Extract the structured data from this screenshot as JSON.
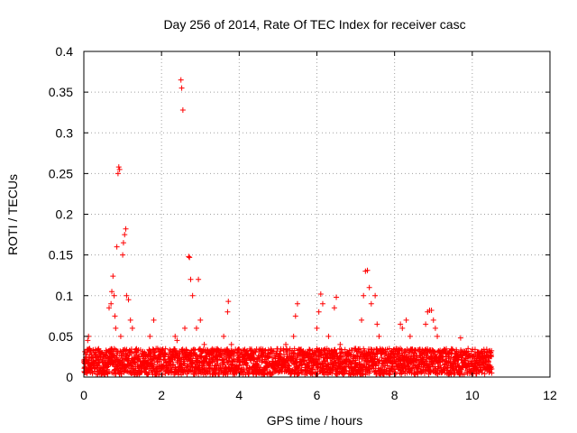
{
  "chart_data": {
    "type": "scatter",
    "title": "Day 256 of 2014, Rate Of TEC Index for receiver casc",
    "xlabel": "GPS time / hours",
    "ylabel": "ROTI / TECUs",
    "xlim": [
      0,
      12
    ],
    "ylim": [
      0,
      0.4
    ],
    "x_ticks": [
      {
        "value": 0,
        "label": "0"
      },
      {
        "value": 2,
        "label": "2"
      },
      {
        "value": 4,
        "label": "4"
      },
      {
        "value": 6,
        "label": "6"
      },
      {
        "value": 8,
        "label": "8"
      },
      {
        "value": 10,
        "label": "10"
      },
      {
        "value": 12,
        "label": "12"
      }
    ],
    "y_ticks": [
      {
        "value": 0,
        "label": "0"
      },
      {
        "value": 0.05,
        "label": "0.05"
      },
      {
        "value": 0.1,
        "label": "0.1"
      },
      {
        "value": 0.15,
        "label": "0.15"
      },
      {
        "value": 0.2,
        "label": "0.2"
      },
      {
        "value": 0.25,
        "label": "0.25"
      },
      {
        "value": 0.3,
        "label": "0.3"
      },
      {
        "value": 0.35,
        "label": "0.35"
      },
      {
        "value": 0.4,
        "label": "0.4"
      }
    ],
    "grid": true,
    "marker": "+",
    "color": "#ff0000",
    "series": [
      {
        "name": "ROTI",
        "points": [
          [
            0.02,
            0.012
          ],
          [
            0.05,
            0.02
          ],
          [
            0.08,
            0.03
          ],
          [
            0.1,
            0.045
          ],
          [
            0.12,
            0.05
          ],
          [
            0.15,
            0.035
          ],
          [
            0.2,
            0.015
          ],
          [
            0.3,
            0.02
          ],
          [
            0.4,
            0.018
          ],
          [
            0.5,
            0.025
          ],
          [
            0.6,
            0.03
          ],
          [
            0.65,
            0.085
          ],
          [
            0.7,
            0.09
          ],
          [
            0.72,
            0.105
          ],
          [
            0.75,
            0.124
          ],
          [
            0.78,
            0.1
          ],
          [
            0.8,
            0.075
          ],
          [
            0.82,
            0.06
          ],
          [
            0.85,
            0.16
          ],
          [
            0.88,
            0.25
          ],
          [
            0.9,
            0.258
          ],
          [
            0.92,
            0.255
          ],
          [
            0.95,
            0.05
          ],
          [
            1.0,
            0.15
          ],
          [
            1.02,
            0.165
          ],
          [
            1.05,
            0.175
          ],
          [
            1.08,
            0.182
          ],
          [
            1.1,
            0.1
          ],
          [
            1.15,
            0.095
          ],
          [
            1.2,
            0.07
          ],
          [
            1.25,
            0.06
          ],
          [
            1.3,
            0.03
          ],
          [
            1.4,
            0.025
          ],
          [
            1.5,
            0.028
          ],
          [
            1.6,
            0.02
          ],
          [
            1.7,
            0.05
          ],
          [
            1.8,
            0.07
          ],
          [
            1.9,
            0.035
          ],
          [
            2.0,
            0.03
          ],
          [
            2.2,
            0.028
          ],
          [
            2.35,
            0.05
          ],
          [
            2.4,
            0.045
          ],
          [
            2.5,
            0.365
          ],
          [
            2.52,
            0.355
          ],
          [
            2.55,
            0.328
          ],
          [
            2.6,
            0.06
          ],
          [
            2.7,
            0.148
          ],
          [
            2.72,
            0.147
          ],
          [
            2.75,
            0.12
          ],
          [
            2.8,
            0.1
          ],
          [
            2.9,
            0.06
          ],
          [
            2.95,
            0.12
          ],
          [
            3.0,
            0.07
          ],
          [
            3.1,
            0.04
          ],
          [
            3.2,
            0.03
          ],
          [
            3.4,
            0.025
          ],
          [
            3.6,
            0.05
          ],
          [
            3.7,
            0.08
          ],
          [
            3.72,
            0.093
          ],
          [
            3.8,
            0.04
          ],
          [
            3.9,
            0.02
          ],
          [
            4.0,
            0.015
          ],
          [
            4.3,
            0.025
          ],
          [
            4.6,
            0.02
          ],
          [
            5.0,
            0.025
          ],
          [
            5.2,
            0.04
          ],
          [
            5.4,
            0.05
          ],
          [
            5.45,
            0.075
          ],
          [
            5.5,
            0.09
          ],
          [
            5.6,
            0.03
          ],
          [
            5.8,
            0.025
          ],
          [
            6.0,
            0.06
          ],
          [
            6.05,
            0.08
          ],
          [
            6.1,
            0.102
          ],
          [
            6.15,
            0.09
          ],
          [
            6.3,
            0.05
          ],
          [
            6.45,
            0.085
          ],
          [
            6.5,
            0.098
          ],
          [
            6.6,
            0.04
          ],
          [
            6.8,
            0.03
          ],
          [
            7.0,
            0.035
          ],
          [
            7.15,
            0.07
          ],
          [
            7.2,
            0.1
          ],
          [
            7.25,
            0.13
          ],
          [
            7.3,
            0.131
          ],
          [
            7.35,
            0.11
          ],
          [
            7.4,
            0.09
          ],
          [
            7.5,
            0.1
          ],
          [
            7.55,
            0.065
          ],
          [
            7.6,
            0.05
          ],
          [
            7.7,
            0.03
          ],
          [
            7.9,
            0.025
          ],
          [
            8.0,
            0.02
          ],
          [
            8.15,
            0.065
          ],
          [
            8.2,
            0.06
          ],
          [
            8.3,
            0.07
          ],
          [
            8.4,
            0.05
          ],
          [
            8.5,
            0.03
          ],
          [
            8.7,
            0.03
          ],
          [
            8.8,
            0.065
          ],
          [
            8.85,
            0.08
          ],
          [
            8.9,
            0.082
          ],
          [
            8.95,
            0.082
          ],
          [
            9.0,
            0.07
          ],
          [
            9.05,
            0.06
          ],
          [
            9.1,
            0.05
          ],
          [
            9.2,
            0.03
          ],
          [
            9.4,
            0.025
          ],
          [
            9.6,
            0.03
          ],
          [
            9.7,
            0.048
          ],
          [
            9.8,
            0.02
          ],
          [
            10.0,
            0.02
          ],
          [
            10.2,
            0.025
          ],
          [
            10.4,
            0.015
          ],
          [
            10.45,
            0.012
          ],
          [
            10.5,
            0.01
          ]
        ],
        "baseline_band": {
          "x_start": 0.0,
          "x_end": 10.5,
          "y_min": 0.003,
          "y_max": 0.035
        }
      }
    ]
  }
}
